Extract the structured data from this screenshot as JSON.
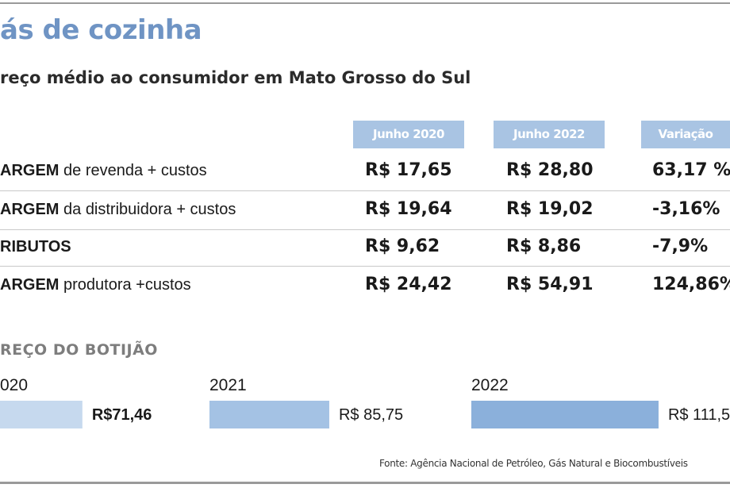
{
  "title": "ás de cozinha",
  "subtitle": "reço médio ao consumidor em Mato Grosso do Sul",
  "colors": {
    "accent": "#6f94c4",
    "header_bg": "#a9c4e3",
    "bar_light": "#c6d9ee",
    "bar_mid": "#a4c2e4",
    "bar_dark": "#8bb0db"
  },
  "chart_data": [
    {
      "type": "table",
      "columns": [
        "Junho 2020",
        "Junho 2022",
        "Variação"
      ],
      "rows": [
        {
          "label_bold": "ARGEM",
          "label_rest": " de revenda + custos",
          "values": [
            "R$ 17,65",
            "R$ 28,80",
            "63,17 %"
          ]
        },
        {
          "label_bold": "ARGEM",
          "label_rest": " da distribuidora + custos",
          "values": [
            "R$ 19,64",
            "R$ 19,02",
            "-3,16%"
          ]
        },
        {
          "label_bold": "RIBUTOS",
          "label_rest": "",
          "values": [
            "R$ 9,62",
            "R$ 8,86",
            "-7,9%"
          ]
        },
        {
          "label_bold": "ARGEM",
          "label_rest": " produtora +custos",
          "values": [
            "R$ 24,42",
            "R$ 54,91",
            "124,86%"
          ]
        }
      ]
    },
    {
      "type": "bar",
      "title": "REÇO DO BOTIJÃO",
      "categories": [
        "020",
        "2021",
        "2022"
      ],
      "values": [
        71.46,
        85.75,
        111.5
      ],
      "value_labels": [
        "R$71,46",
        "R$ 85,75",
        "R$ 111,5"
      ]
    }
  ],
  "source": "Fonte: Agência Nacional de Petróleo, Gás Natural e Biocombustíveis"
}
